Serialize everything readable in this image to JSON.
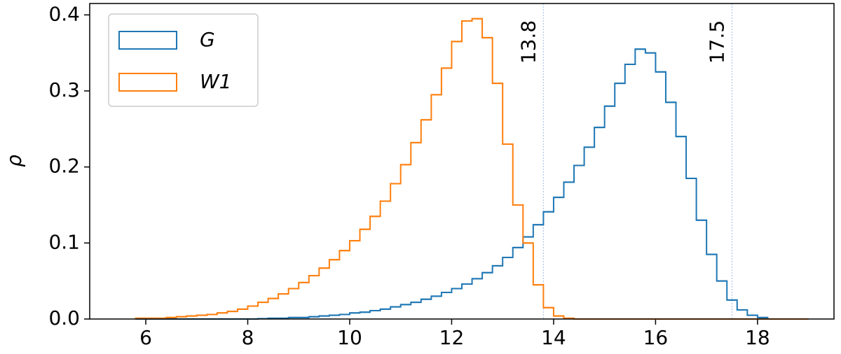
{
  "chart_data": {
    "type": "histogram",
    "ylabel": "ρ",
    "bins": [
      5.8,
      6.0,
      6.2,
      6.4,
      6.6,
      6.8,
      7.0,
      7.2,
      7.4,
      7.6,
      7.8,
      8.0,
      8.2,
      8.4,
      8.6,
      8.8,
      9.0,
      9.2,
      9.4,
      9.6,
      9.8,
      10.0,
      10.2,
      10.4,
      10.6,
      10.8,
      11.0,
      11.2,
      11.4,
      11.6,
      11.8,
      12.0,
      12.2,
      12.4,
      12.6,
      12.8,
      13.0,
      13.2,
      13.4,
      13.6,
      13.8,
      14.0,
      14.2,
      14.4,
      14.6,
      14.8,
      15.0,
      15.2,
      15.4,
      15.6,
      15.8,
      16.0,
      16.2,
      16.4,
      16.6,
      16.8,
      17.0,
      17.2,
      17.4,
      17.6,
      17.8,
      18.0,
      18.2,
      18.4,
      18.6,
      18.8,
      19.0
    ],
    "series": [
      {
        "name": "G",
        "color": "#1f77b4",
        "values": [
          0,
          0,
          0,
          0,
          0,
          0,
          0,
          0,
          0,
          0,
          0,
          0,
          0.0005,
          0.001,
          0.001,
          0.002,
          0.002,
          0.003,
          0.004,
          0.005,
          0.006,
          0.008,
          0.009,
          0.011,
          0.013,
          0.016,
          0.019,
          0.022,
          0.026,
          0.03,
          0.035,
          0.04,
          0.046,
          0.053,
          0.061,
          0.07,
          0.081,
          0.094,
          0.108,
          0.124,
          0.141,
          0.16,
          0.18,
          0.202,
          0.226,
          0.252,
          0.28,
          0.31,
          0.335,
          0.355,
          0.35,
          0.325,
          0.285,
          0.24,
          0.185,
          0.13,
          0.085,
          0.05,
          0.025,
          0.012,
          0.005,
          0.002,
          0,
          0,
          0,
          0
        ]
      },
      {
        "name": "W1",
        "color": "#ff7f0e",
        "values": [
          0.001,
          0.001,
          0.001,
          0.002,
          0.003,
          0.004,
          0.005,
          0.006,
          0.008,
          0.01,
          0.013,
          0.017,
          0.022,
          0.027,
          0.033,
          0.04,
          0.048,
          0.057,
          0.067,
          0.078,
          0.09,
          0.103,
          0.118,
          0.135,
          0.155,
          0.178,
          0.203,
          0.232,
          0.262,
          0.295,
          0.33,
          0.365,
          0.392,
          0.395,
          0.37,
          0.31,
          0.23,
          0.15,
          0.1,
          0.045,
          0.015,
          0.004,
          0.001,
          0,
          0,
          0,
          0,
          0,
          0,
          0,
          0,
          0,
          0,
          0,
          0,
          0,
          0,
          0,
          0,
          0,
          0,
          0,
          0,
          0,
          0,
          0
        ]
      }
    ],
    "vlines": [
      13.8,
      17.5
    ],
    "vline_color": "#aec7e8",
    "xlim": [
      4.9,
      19.5
    ],
    "ylim": [
      0,
      0.415
    ],
    "xticks": [
      6,
      8,
      10,
      12,
      14,
      16,
      18
    ],
    "yticks": [
      {
        "value": 0,
        "label": "0.0"
      },
      0.1,
      0.2,
      0.3,
      0.4
    ],
    "legend": "upper left"
  }
}
